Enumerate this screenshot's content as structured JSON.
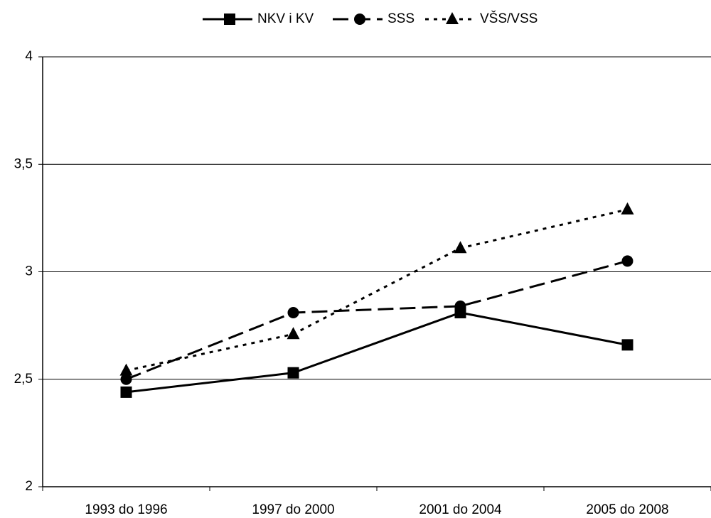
{
  "chart_data": {
    "type": "line",
    "categories": [
      "1993 do 1996",
      "1997 do 2000",
      "2001 do 2004",
      "2005 do 2008"
    ],
    "series": [
      {
        "name": "NKV i KV",
        "color": "#000000",
        "dash": "solid",
        "marker": "square",
        "values": [
          2.44,
          2.53,
          2.81,
          2.66
        ]
      },
      {
        "name": "SSS",
        "color": "#000000",
        "dash": "dashed",
        "marker": "circle",
        "values": [
          2.5,
          2.81,
          2.84,
          3.05
        ]
      },
      {
        "name": "VŠS/VSS",
        "color": "#000000",
        "dash": "dotted",
        "marker": "triangle",
        "values": [
          2.54,
          2.71,
          3.11,
          3.29
        ]
      }
    ],
    "ylim": [
      2,
      4
    ],
    "yticks": [
      2,
      {
        "value": 2.5,
        "label": "2,5"
      },
      3,
      {
        "value": 3.5,
        "label": "3,5"
      },
      4
    ],
    "grid": true,
    "legend": "top"
  }
}
